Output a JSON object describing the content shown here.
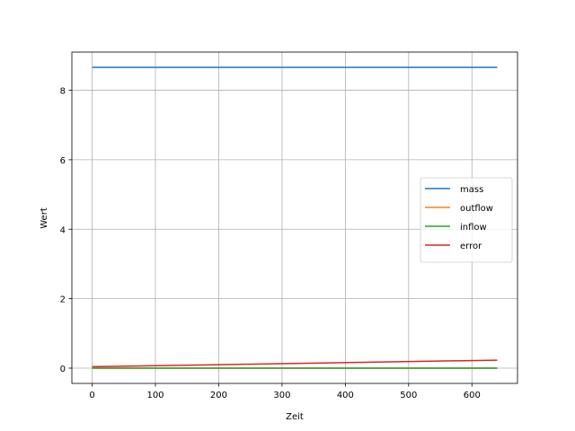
{
  "chart_data": {
    "type": "line",
    "xlabel": "Zeit",
    "ylabel": "Wert",
    "xlim": [
      -32,
      672
    ],
    "ylim": [
      -0.44,
      9.1
    ],
    "xticks": [
      0,
      100,
      200,
      300,
      400,
      500,
      600
    ],
    "yticks": [
      0,
      2,
      4,
      6,
      8
    ],
    "grid": true,
    "legend": "center-right",
    "series": [
      {
        "name": "mass",
        "color": "#1f77b4",
        "x": [
          0,
          640
        ],
        "values": [
          8.66,
          8.66
        ]
      },
      {
        "name": "outflow",
        "color": "#ff7f0e",
        "x": [
          0,
          640
        ],
        "values": [
          0.0,
          0.0
        ]
      },
      {
        "name": "inflow",
        "color": "#2ca02c",
        "x": [
          0,
          640
        ],
        "values": [
          0.0,
          0.0
        ]
      },
      {
        "name": "error",
        "color": "#d62728",
        "x": [
          0,
          640
        ],
        "values": [
          0.04,
          0.23
        ]
      }
    ]
  }
}
